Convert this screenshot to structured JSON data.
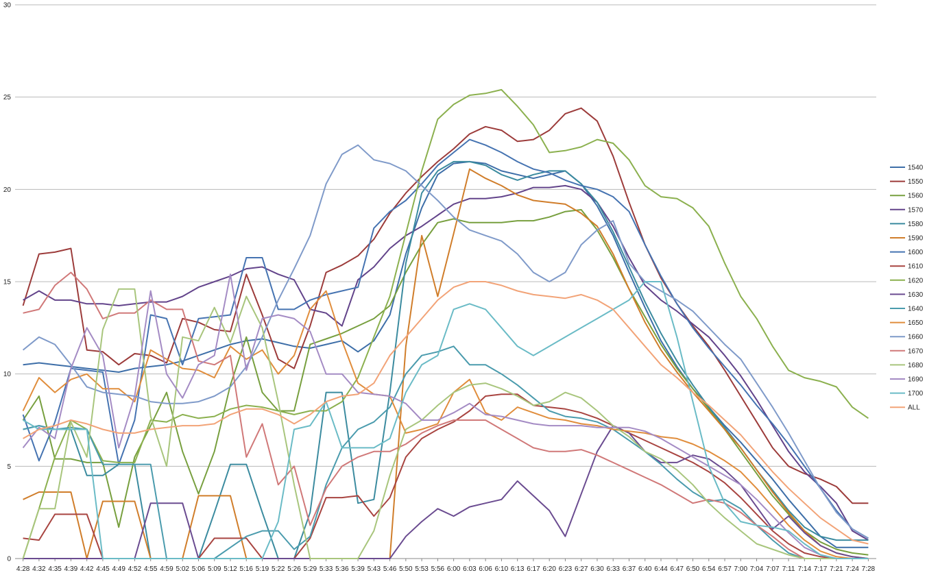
{
  "chart_data": {
    "type": "line",
    "title": "",
    "xlabel": "",
    "ylabel": "",
    "ylim": [
      0,
      30
    ],
    "yticks": [
      0,
      5,
      10,
      15,
      20,
      25,
      30
    ],
    "grid": "horizontal",
    "legend_position": "right",
    "x": [
      "4:28",
      "4:32",
      "4:35",
      "4:39",
      "4:42",
      "4:45",
      "4:49",
      "4:52",
      "4:55",
      "4:59",
      "5:02",
      "5:06",
      "5:09",
      "5:12",
      "5:16",
      "5:19",
      "5:22",
      "5:26",
      "5:29",
      "5:33",
      "5:36",
      "5:39",
      "5:43",
      "5:46",
      "5:50",
      "5:53",
      "5:56",
      "6:00",
      "6:03",
      "6:06",
      "6:10",
      "6:13",
      "6:17",
      "6:20",
      "6:23",
      "6:27",
      "6:30",
      "6:33",
      "6:37",
      "6:40",
      "6:44",
      "6:47",
      "6:50",
      "6:54",
      "6:57",
      "7:00",
      "7:04",
      "7:07",
      "7:11",
      "7:14",
      "7:17",
      "7:21",
      "7:24",
      "7:28"
    ],
    "series": [
      {
        "name": "1540",
        "color": "#3d6ea8",
        "values": [
          10.5,
          10.6,
          10.5,
          10.4,
          10.3,
          10.2,
          10.1,
          10.3,
          10.4,
          10.5,
          10.7,
          11.0,
          11.3,
          11.6,
          11.8,
          11.9,
          11.7,
          11.5,
          11.4,
          11.6,
          11.8,
          11.2,
          11.8,
          13.2,
          16.5,
          19.0,
          20.8,
          21.4,
          21.5,
          21.4,
          21.0,
          20.8,
          20.6,
          20.8,
          21.0,
          20.3,
          19.1,
          17.5,
          15.5,
          13.6,
          11.8,
          10.4,
          9.2,
          8.2,
          7.2,
          6.3,
          5.3,
          4.3,
          3.2,
          2.2,
          1.2,
          0.6,
          0.6,
          0.6
        ]
      },
      {
        "name": "1550",
        "color": "#9c3b3a",
        "values": [
          13.7,
          16.5,
          16.6,
          16.8,
          11.3,
          11.2,
          10.5,
          11.1,
          11.0,
          10.6,
          13.0,
          12.8,
          12.4,
          12.3,
          15.4,
          13.2,
          10.8,
          10.3,
          12.6,
          15.5,
          15.9,
          16.4,
          17.3,
          18.7,
          19.8,
          20.7,
          21.5,
          22.2,
          23.0,
          23.4,
          23.2,
          22.6,
          22.7,
          23.2,
          24.1,
          24.4,
          23.7,
          21.8,
          19.3,
          17.0,
          15.2,
          13.8,
          12.6,
          11.5,
          10.2,
          8.8,
          7.4,
          6.0,
          5.0,
          4.6,
          4.3,
          3.9,
          3.0,
          3.0
        ]
      },
      {
        "name": "1560",
        "color": "#779f3e",
        "values": [
          7.5,
          8.8,
          5.4,
          5.4,
          5.2,
          5.2,
          1.7,
          5.5,
          7.2,
          9.0,
          5.8,
          3.5,
          5.8,
          9.4,
          12.0,
          9.0,
          8.0,
          8.0,
          11.6,
          11.9,
          12.2,
          12.6,
          13.0,
          13.7,
          15.5,
          17.0,
          18.2,
          18.4,
          18.2,
          18.2,
          18.2,
          18.3,
          18.3,
          18.5,
          18.8,
          18.9,
          17.8,
          16.3,
          14.6,
          13.1,
          11.6,
          10.3,
          9.2,
          8.1,
          7.0,
          5.8,
          4.6,
          3.4,
          2.4,
          1.5,
          0.9,
          0.5,
          0.3,
          0.2
        ]
      },
      {
        "name": "1570",
        "color": "#62438a",
        "values": [
          14.0,
          14.5,
          14.0,
          14.0,
          13.8,
          13.8,
          13.7,
          13.8,
          13.9,
          13.9,
          14.2,
          14.7,
          15.0,
          15.3,
          15.7,
          15.8,
          15.4,
          15.1,
          13.5,
          13.3,
          12.6,
          15.1,
          15.8,
          16.8,
          17.5,
          18.0,
          18.6,
          19.2,
          19.5,
          19.5,
          19.6,
          19.8,
          20.1,
          20.1,
          20.2,
          20.0,
          19.3,
          18.0,
          16.3,
          14.8,
          14.0,
          13.4,
          12.7,
          12.0,
          11.0,
          9.9,
          8.6,
          7.2,
          5.8,
          4.7,
          3.9,
          3.0,
          1.5,
          1.0
        ]
      },
      {
        "name": "1580",
        "color": "#3b8b9f",
        "values": [
          7.0,
          7.2,
          7.0,
          7.0,
          4.5,
          4.5,
          5.1,
          5.1,
          0.0,
          0.0,
          0.0,
          0.0,
          2.5,
          5.1,
          5.1,
          2.5,
          0.0,
          0.0,
          2.5,
          9.0,
          9.0,
          3.0,
          3.2,
          9.0,
          16.0,
          19.8,
          21.0,
          21.5,
          21.5,
          21.3,
          20.8,
          20.5,
          20.8,
          21.0,
          21.0,
          20.3,
          19.3,
          17.7,
          15.8,
          13.9,
          12.2,
          10.7,
          9.4,
          8.2,
          7.1,
          6.0,
          4.8,
          3.7,
          2.6,
          1.7,
          1.2,
          1.0,
          1.0,
          1.0
        ]
      },
      {
        "name": "1590",
        "color": "#d07d2a",
        "values": [
          3.2,
          3.6,
          3.6,
          3.6,
          0.0,
          3.1,
          3.1,
          3.1,
          0.0,
          0.0,
          0.0,
          3.4,
          3.4,
          3.4,
          0.0,
          0.0,
          0.0,
          0.0,
          0.0,
          0.0,
          0.0,
          0.0,
          0.0,
          0.0,
          11.5,
          17.5,
          14.2,
          17.6,
          21.1,
          20.6,
          20.2,
          19.7,
          19.4,
          19.3,
          19.2,
          18.7,
          18.0,
          16.5,
          14.6,
          12.8,
          11.3,
          10.1,
          9.0,
          8.0,
          7.0,
          6.0,
          4.8,
          3.6,
          2.5,
          1.5,
          0.7,
          0.3,
          0.1,
          0.0
        ]
      },
      {
        "name": "1600",
        "color": "#4573b1",
        "values": [
          7.8,
          5.3,
          7.4,
          10.3,
          10.2,
          10.1,
          5.1,
          7.5,
          13.2,
          13.0,
          10.5,
          13.0,
          13.1,
          13.2,
          16.3,
          16.3,
          13.5,
          13.5,
          14.0,
          14.3,
          14.5,
          14.7,
          17.9,
          18.8,
          19.4,
          20.3,
          21.3,
          22.0,
          22.7,
          22.4,
          22.0,
          21.5,
          21.1,
          20.9,
          20.5,
          20.2,
          20.0,
          19.6,
          18.8,
          17.0,
          15.3,
          13.8,
          12.5,
          11.4,
          10.4,
          9.4,
          8.3,
          7.3,
          6.2,
          5.0,
          3.8,
          2.6,
          1.6,
          1.1
        ]
      },
      {
        "name": "1610",
        "color": "#a84440",
        "values": [
          1.1,
          1.0,
          2.4,
          2.4,
          2.4,
          0.0,
          0.0,
          0.0,
          0.0,
          0.0,
          0.0,
          0.0,
          1.1,
          1.1,
          1.1,
          0.0,
          0.0,
          0.0,
          1.1,
          3.3,
          3.3,
          3.4,
          2.3,
          3.3,
          5.5,
          6.5,
          7.0,
          7.4,
          8.0,
          8.8,
          8.9,
          8.9,
          8.3,
          8.2,
          8.1,
          7.9,
          7.6,
          7.2,
          6.8,
          6.4,
          6.0,
          5.6,
          5.2,
          4.7,
          4.1,
          3.3,
          2.4,
          1.5,
          0.8,
          0.3,
          0.1,
          0.0,
          0.0,
          0.0
        ]
      },
      {
        "name": "1620",
        "color": "#8bb04e",
        "values": [
          0.0,
          2.7,
          5.5,
          7.5,
          7.0,
          5.3,
          5.2,
          5.2,
          7.5,
          7.4,
          7.8,
          7.6,
          7.7,
          8.1,
          8.3,
          8.2,
          8.0,
          7.8,
          8.0,
          8.0,
          8.5,
          9.8,
          12.0,
          14.2,
          17.6,
          21.0,
          23.8,
          24.6,
          25.1,
          25.2,
          25.4,
          24.5,
          23.5,
          22.0,
          22.1,
          22.3,
          22.7,
          22.5,
          21.6,
          20.2,
          19.6,
          19.5,
          19.0,
          18.0,
          16.0,
          14.2,
          13.0,
          11.5,
          10.2,
          9.8,
          9.6,
          9.3,
          8.2,
          7.6
        ]
      },
      {
        "name": "1630",
        "color": "#6a4b90",
        "values": [
          0.0,
          0.0,
          0.0,
          0.0,
          0.0,
          0.0,
          0.0,
          0.0,
          3.0,
          3.0,
          3.0,
          0.0,
          0.0,
          0.0,
          0.0,
          0.0,
          0.0,
          0.0,
          0.0,
          0.0,
          0.0,
          0.0,
          0.0,
          0.0,
          1.2,
          2.0,
          2.7,
          2.3,
          2.8,
          3.0,
          3.2,
          4.2,
          3.4,
          2.6,
          1.2,
          3.5,
          5.8,
          7.2,
          6.8,
          5.8,
          5.2,
          5.2,
          5.6,
          5.4,
          4.8,
          4.0,
          2.8,
          1.6,
          2.3,
          1.4,
          0.7,
          0.3,
          0.1,
          0.0
        ]
      },
      {
        "name": "1640",
        "color": "#4a9bad",
        "values": [
          7.0,
          7.2,
          7.0,
          7.1,
          7.0,
          5.1,
          5.1,
          5.1,
          5.1,
          0.0,
          0.0,
          0.0,
          0.0,
          0.6,
          1.2,
          1.5,
          1.5,
          0.5,
          1.2,
          4.0,
          6.0,
          7.0,
          7.4,
          8.2,
          10.0,
          11.0,
          11.2,
          11.5,
          10.5,
          10.5,
          10.0,
          9.4,
          8.7,
          8.0,
          7.7,
          7.6,
          7.4,
          7.0,
          6.4,
          5.8,
          5.1,
          4.3,
          3.6,
          3.1,
          3.2,
          2.7,
          1.8,
          1.0,
          0.3,
          0.0,
          0.0,
          0.0,
          0.0,
          0.0
        ]
      },
      {
        "name": "1650",
        "color": "#e08d3c",
        "values": [
          8.0,
          9.8,
          9.0,
          9.7,
          10.0,
          9.2,
          9.2,
          8.5,
          11.3,
          10.8,
          10.3,
          10.2,
          9.8,
          11.5,
          10.8,
          11.3,
          10.0,
          11.0,
          13.5,
          14.5,
          11.8,
          9.5,
          8.9,
          8.8,
          6.8,
          7.0,
          7.3,
          9.0,
          9.7,
          7.9,
          7.5,
          8.2,
          7.9,
          7.6,
          7.5,
          7.3,
          7.2,
          7.0,
          6.9,
          6.8,
          6.6,
          6.5,
          6.2,
          5.8,
          5.3,
          4.7,
          3.8,
          2.8,
          1.8,
          1.0,
          0.4,
          0.1,
          0.0,
          0.0
        ]
      },
      {
        "name": "1660",
        "color": "#7f9ac9",
        "values": [
          11.3,
          12.0,
          11.6,
          10.5,
          9.3,
          9.0,
          8.9,
          8.8,
          8.5,
          8.4,
          8.4,
          8.5,
          8.8,
          9.3,
          10.4,
          12.0,
          14.0,
          15.7,
          17.5,
          20.3,
          21.9,
          22.4,
          21.6,
          21.4,
          21.0,
          20.2,
          19.4,
          18.5,
          17.8,
          17.5,
          17.2,
          16.5,
          15.5,
          15.0,
          15.5,
          17.0,
          17.8,
          18.3,
          16.0,
          15.0,
          14.5,
          14.0,
          13.4,
          12.5,
          11.6,
          10.8,
          9.5,
          8.2,
          6.8,
          5.3,
          3.8,
          2.5,
          1.6,
          1.1
        ]
      },
      {
        "name": "1670",
        "color": "#d07878",
        "values": [
          13.3,
          13.5,
          14.8,
          15.5,
          14.6,
          13.0,
          13.3,
          13.3,
          14.0,
          13.5,
          13.5,
          10.7,
          10.5,
          11.0,
          5.5,
          7.3,
          4.0,
          5.0,
          1.8,
          3.8,
          5.0,
          5.5,
          5.8,
          5.8,
          6.2,
          6.8,
          7.2,
          7.5,
          7.5,
          7.5,
          7.0,
          6.5,
          6.0,
          5.8,
          5.8,
          5.9,
          5.6,
          5.2,
          4.8,
          4.4,
          4.0,
          3.5,
          3.0,
          3.2,
          3.0,
          2.5,
          1.8,
          1.2,
          0.5,
          0.0,
          0.0,
          0.0,
          0.0,
          0.0
        ]
      },
      {
        "name": "1680",
        "color": "#a8c57c",
        "values": [
          0.0,
          2.7,
          2.7,
          7.4,
          5.5,
          12.4,
          14.6,
          14.6,
          7.7,
          5.0,
          12.0,
          11.8,
          13.6,
          11.7,
          14.2,
          12.5,
          8.5,
          4.0,
          0.0,
          0.0,
          0.0,
          0.0,
          1.5,
          4.5,
          7.0,
          7.5,
          8.3,
          9.0,
          9.4,
          9.5,
          9.2,
          8.8,
          8.3,
          8.5,
          9.0,
          8.7,
          8.0,
          7.2,
          6.6,
          5.8,
          5.4,
          4.8,
          4.0,
          3.0,
          2.2,
          1.5,
          0.8,
          0.5,
          0.2,
          0.0,
          0.0,
          0.0,
          0.0,
          0.0
        ]
      },
      {
        "name": "1690",
        "color": "#a48bc4",
        "values": [
          6.0,
          7.1,
          6.5,
          10.3,
          12.5,
          11.0,
          6.0,
          8.8,
          14.5,
          10.0,
          8.7,
          10.5,
          11.0,
          15.4,
          10.2,
          13.0,
          13.2,
          13.0,
          12.3,
          10.0,
          10.0,
          9.0,
          8.9,
          8.8,
          8.4,
          7.5,
          7.5,
          7.9,
          8.4,
          7.8,
          7.7,
          7.5,
          7.3,
          7.2,
          7.2,
          7.2,
          7.1,
          7.1,
          7.1,
          6.9,
          6.5,
          6.0,
          5.5,
          5.0,
          4.5,
          4.0,
          3.2,
          2.3,
          1.4,
          0.6,
          0.2,
          0.0,
          0.0,
          0.0
        ]
      },
      {
        "name": "1700",
        "color": "#6abbc6",
        "values": [
          7.5,
          7.0,
          7.0,
          7.0,
          7.0,
          0.0,
          0.0,
          0.0,
          0.0,
          0.0,
          0.0,
          0.0,
          0.0,
          0.0,
          0.0,
          0.0,
          2.0,
          7.0,
          7.2,
          8.5,
          6.0,
          6.0,
          6.0,
          6.5,
          9.0,
          10.5,
          11.0,
          13.5,
          13.8,
          13.5,
          12.5,
          11.5,
          11.0,
          11.5,
          12.0,
          12.5,
          13.0,
          13.5,
          14.0,
          15.0,
          15.0,
          12.0,
          8.5,
          5.0,
          3.0,
          2.0,
          1.8,
          1.7,
          1.5,
          0.8,
          0.2,
          0.0,
          0.0,
          0.0
        ]
      },
      {
        "name": "ALL",
        "color": "#f2a377",
        "values": [
          6.5,
          7.0,
          7.2,
          7.5,
          7.3,
          7.0,
          6.8,
          6.8,
          7.0,
          7.1,
          7.2,
          7.2,
          7.3,
          7.8,
          8.1,
          8.1,
          7.8,
          7.3,
          7.8,
          8.5,
          8.8,
          8.9,
          9.5,
          11.0,
          12.0,
          13.0,
          14.0,
          14.7,
          15.0,
          15.0,
          14.8,
          14.5,
          14.3,
          14.2,
          14.1,
          14.3,
          14.0,
          13.5,
          12.5,
          11.5,
          10.5,
          9.8,
          9.0,
          8.3,
          7.5,
          6.7,
          5.7,
          4.7,
          3.8,
          3.0,
          2.2,
          1.6,
          1.0,
          0.8
        ]
      }
    ]
  }
}
